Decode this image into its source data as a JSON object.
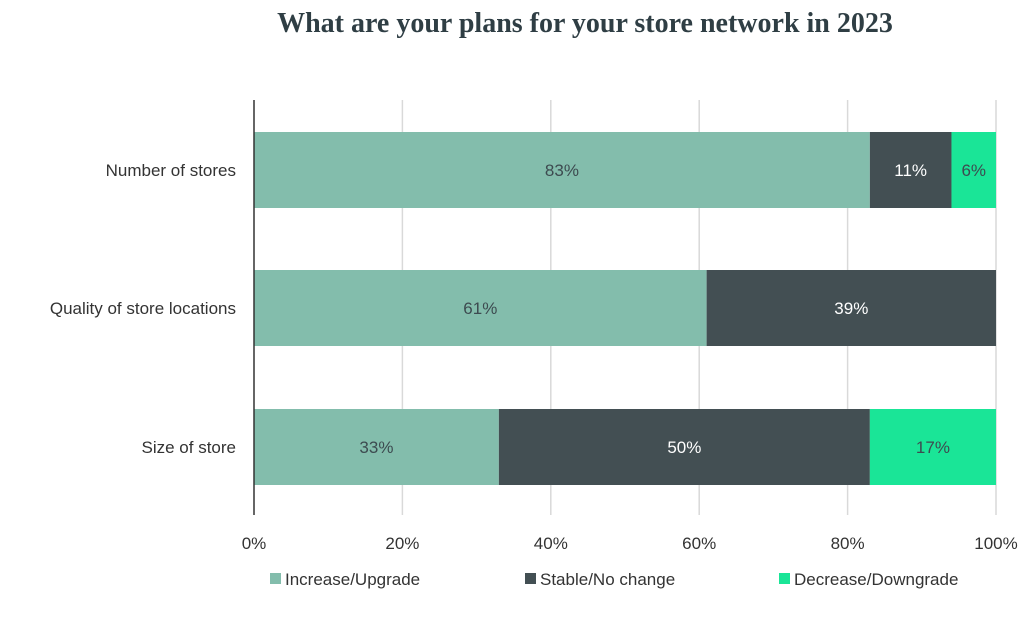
{
  "chart_data": {
    "type": "bar",
    "orientation": "horizontal",
    "stacked": true,
    "title": "What are your plans for your store network in 2023",
    "categories": [
      "Number of stores",
      "Quality of store locations",
      "Size of store"
    ],
    "series": [
      {
        "name": "Increase/Upgrade",
        "values": [
          83,
          61,
          33
        ],
        "labels": [
          "83%",
          "61%",
          "33%"
        ],
        "color": "#83bdac",
        "label_color": "#3d4b50"
      },
      {
        "name": "Stable/No change",
        "values": [
          11,
          39,
          50
        ],
        "labels": [
          "11%",
          "39%",
          "50%"
        ],
        "color": "#434f53",
        "label_color": "#ffffff"
      },
      {
        "name": "Decrease/Downgrade",
        "values": [
          6,
          0,
          17
        ],
        "labels": [
          "6%",
          "",
          "17%"
        ],
        "color": "#1ae597",
        "label_color": "#3d4b50"
      }
    ],
    "xlim": [
      0,
      100
    ],
    "xticks": [
      0,
      20,
      40,
      60,
      80,
      100
    ],
    "xtick_labels": [
      "0%",
      "20%",
      "40%",
      "60%",
      "80%",
      "100%"
    ],
    "grid": true,
    "legend_position": "bottom"
  }
}
